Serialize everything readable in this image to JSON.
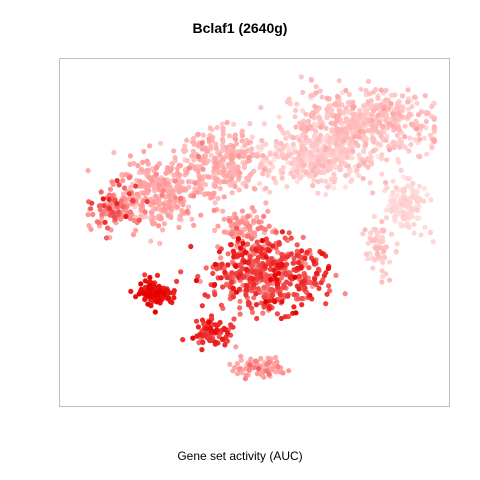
{
  "chart_data": {
    "type": "scatter",
    "title": "Bclaf1 (2640g)",
    "xlabel": "Gene set activity (AUC)",
    "ylabel": "",
    "axes_visible": false,
    "grid": false,
    "legend": "none",
    "colors": {
      "low": "#FFE6E6",
      "mid": "#FF9A9A",
      "high": "#E60000"
    },
    "value_range": [
      0,
      1
    ],
    "clusters": [
      {
        "center": [
          0.78,
          0.83
        ],
        "spread": [
          0.17,
          0.08
        ],
        "count": 520,
        "value_mean": 0.22,
        "value_sd": 0.08
      },
      {
        "center": [
          0.67,
          0.72
        ],
        "spread": [
          0.14,
          0.07
        ],
        "count": 340,
        "value_mean": 0.15,
        "value_sd": 0.07
      },
      {
        "center": [
          0.41,
          0.71
        ],
        "spread": [
          0.09,
          0.08
        ],
        "count": 260,
        "value_mean": 0.32,
        "value_sd": 0.08
      },
      {
        "center": [
          0.24,
          0.62
        ],
        "spread": [
          0.1,
          0.09
        ],
        "count": 300,
        "value_mean": 0.38,
        "value_sd": 0.09
      },
      {
        "center": [
          0.12,
          0.57
        ],
        "spread": [
          0.05,
          0.06
        ],
        "count": 110,
        "value_mean": 0.6,
        "value_sd": 0.12
      },
      {
        "center": [
          0.91,
          0.58
        ],
        "spread": [
          0.05,
          0.06
        ],
        "count": 140,
        "value_mean": 0.08,
        "value_sd": 0.05
      },
      {
        "center": [
          0.84,
          0.45
        ],
        "spread": [
          0.03,
          0.07
        ],
        "count": 60,
        "value_mean": 0.18,
        "value_sd": 0.07
      },
      {
        "center": [
          0.53,
          0.37
        ],
        "spread": [
          0.13,
          0.09
        ],
        "count": 500,
        "value_mean": 0.75,
        "value_sd": 0.11
      },
      {
        "center": [
          0.48,
          0.51
        ],
        "spread": [
          0.06,
          0.05
        ],
        "count": 90,
        "value_mean": 0.48,
        "value_sd": 0.1
      },
      {
        "center": [
          0.23,
          0.32
        ],
        "spread": [
          0.04,
          0.03
        ],
        "count": 120,
        "value_mean": 0.92,
        "value_sd": 0.06
      },
      {
        "center": [
          0.39,
          0.2
        ],
        "spread": [
          0.05,
          0.03
        ],
        "count": 80,
        "value_mean": 0.82,
        "value_sd": 0.08
      },
      {
        "center": [
          0.51,
          0.09
        ],
        "spread": [
          0.05,
          0.03
        ],
        "count": 80,
        "value_mean": 0.45,
        "value_sd": 0.1
      }
    ]
  }
}
